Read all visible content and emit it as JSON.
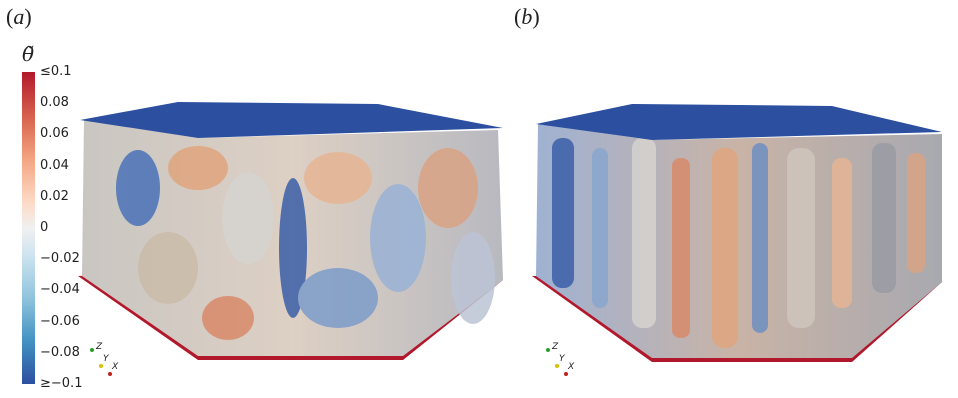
{
  "panels": [
    {
      "label_open": "(",
      "label_letter": "a",
      "label_close": ")"
    },
    {
      "label_open": "(",
      "label_letter": "b",
      "label_close": ")"
    }
  ],
  "colorbar": {
    "title": "θ̃",
    "ticks": [
      "≤0.1",
      "0.08",
      "0.06",
      "0.04",
      "0.02",
      "0",
      "−0.02",
      "−0.04",
      "−0.06",
      "−0.08",
      "≥−0.1"
    ],
    "colors": {
      "hot": "#b2182b",
      "neutral": "#f0f0f0",
      "cold": "#2c4fa0"
    }
  },
  "axes_triad": {
    "z": "Z",
    "y": "Y",
    "x": "X"
  }
}
